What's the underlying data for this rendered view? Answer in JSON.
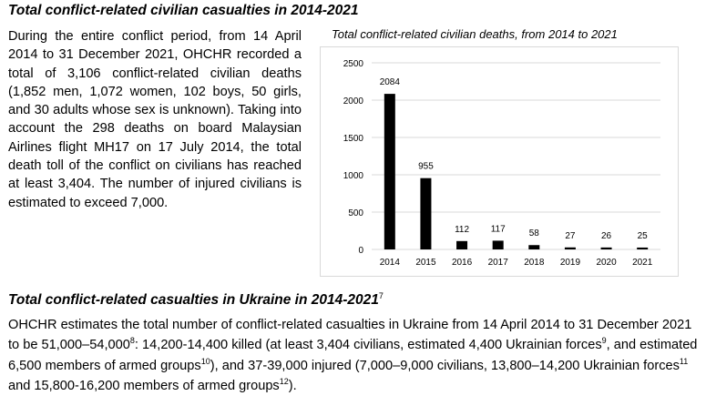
{
  "section1": {
    "title": "Total conflict-related civilian casualties in 2014-2021",
    "paragraph": "During the entire conflict period, from 14 April 2014 to 31 December 2021, OHCHR recorded a total of 3,106 conflict-related civilian deaths (1,852 men, 1,072 women, 102 boys, 50 girls, and 30 adults whose sex is unknown). Taking into account the 298 deaths on board Malaysian Airlines flight MH17 on 17 July 2014, the total death toll of the conflict on civilians has reached at least 3,404. The number of injured civilians is estimated to exceed 7,000."
  },
  "section2": {
    "title": "Total conflict-related casualties in Ukraine in 2014-2021",
    "title_footnote": "7",
    "p_part1": "OHCHR estimates the total number of conflict-related casualties in Ukraine from 14 April 2014 to 31 December 2021 to be 51,000–54,000",
    "fn8": "8",
    "p_part2": ": 14,200-14,400 killed (at least 3,404 civilians, estimated 4,400 Ukrainian forces",
    "fn9": "9",
    "p_part3": ", and estimated 6,500 members of armed groups",
    "fn10": "10",
    "p_part4": "), and 37-39,000 injured (7,000–9,000 civilians, 13,800–14,200 Ukrainian forces",
    "fn11": "11",
    "p_part5": " and 15,800-16,200 members of armed groups",
    "fn12": "12",
    "p_part6": ")."
  },
  "chart_data": {
    "type": "bar",
    "title": "Total conflict-related civilian deaths, from 2014 to 2021",
    "categories": [
      "2014",
      "2015",
      "2016",
      "2017",
      "2018",
      "2019",
      "2020",
      "2021"
    ],
    "values": [
      2084,
      955,
      112,
      117,
      58,
      27,
      26,
      25
    ],
    "y_ticks": [
      0,
      500,
      1000,
      1500,
      2000,
      2500
    ],
    "ylim": [
      0,
      2500
    ],
    "grid": true,
    "bar_color": "#000000",
    "grid_color": "#d9d9d9",
    "xlabel": "",
    "ylabel": ""
  }
}
